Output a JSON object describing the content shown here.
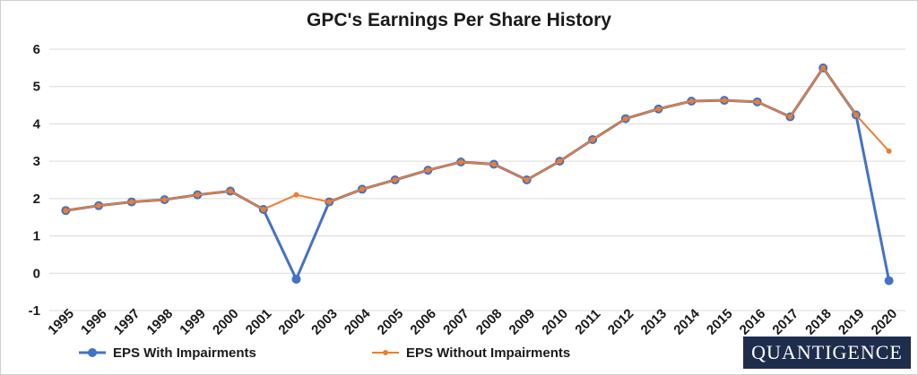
{
  "chart_data": {
    "type": "line",
    "title": "GPC's Earnings Per Share History",
    "xlabel": "",
    "ylabel": "",
    "categories": [
      "1995",
      "1996",
      "1997",
      "1998",
      "1999",
      "2000",
      "2001",
      "2002",
      "2003",
      "2004",
      "2005",
      "2006",
      "2007",
      "2008",
      "2009",
      "2010",
      "2011",
      "2012",
      "2013",
      "2014",
      "2015",
      "2016",
      "2017",
      "2018",
      "2019",
      "2020"
    ],
    "ylim": [
      -1,
      6
    ],
    "yticks": [
      "-1",
      "0",
      "1",
      "2",
      "3",
      "4",
      "5",
      "6"
    ],
    "grid": true,
    "legend_position": "bottom-left",
    "series": [
      {
        "name": "EPS With Impairments",
        "color": "#4472c4",
        "values": [
          1.68,
          1.81,
          1.91,
          1.97,
          2.1,
          2.2,
          1.71,
          -0.16,
          1.91,
          2.25,
          2.5,
          2.76,
          2.98,
          2.92,
          2.5,
          3.0,
          3.58,
          4.14,
          4.4,
          4.61,
          4.63,
          4.59,
          4.19,
          5.5,
          4.24,
          -0.2
        ]
      },
      {
        "name": "EPS Without Impairments",
        "color": "#ed7d31",
        "values": [
          1.68,
          1.81,
          1.91,
          1.97,
          2.1,
          2.2,
          1.71,
          2.1,
          1.91,
          2.25,
          2.5,
          2.76,
          2.98,
          2.92,
          2.5,
          3.0,
          3.58,
          4.14,
          4.4,
          4.61,
          4.63,
          4.59,
          4.19,
          5.5,
          4.24,
          3.27
        ]
      }
    ]
  },
  "logo": {
    "text": "QUANTIGENCE"
  }
}
